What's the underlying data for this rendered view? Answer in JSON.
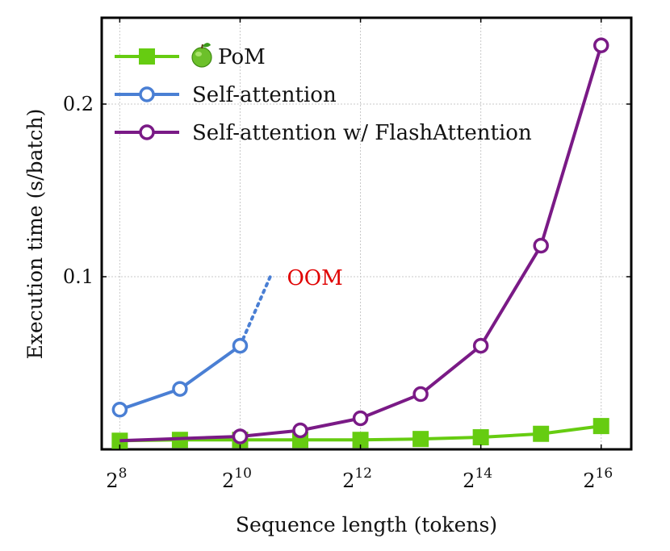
{
  "chart_data": {
    "type": "line",
    "xlabel": "Sequence length (tokens)",
    "ylabel": "Execution time (s/batch)",
    "x_scale": "log2",
    "xlim_exponent": [
      7.7,
      16.5
    ],
    "ylim": [
      0,
      0.25
    ],
    "x_ticks": [
      {
        "base": "2",
        "exp": "8",
        "value": 256
      },
      {
        "base": "2",
        "exp": "10",
        "value": 1024
      },
      {
        "base": "2",
        "exp": "12",
        "value": 4096
      },
      {
        "base": "2",
        "exp": "14",
        "value": 16384
      },
      {
        "base": "2",
        "exp": "16",
        "value": 65536
      }
    ],
    "y_ticks": [
      {
        "label": "0.1",
        "value": 0.1
      },
      {
        "label": "0.2",
        "value": 0.2
      }
    ],
    "grid": true,
    "legend_position": "top-left",
    "series": [
      {
        "name": "PoM",
        "icon": "green-apple-icon",
        "color": "#66cc11",
        "marker": "square-filled",
        "x": [
          256,
          512,
          1024,
          2048,
          4096,
          8192,
          16384,
          32768,
          65536
        ],
        "y": [
          0.005,
          0.0055,
          0.0055,
          0.0055,
          0.0055,
          0.006,
          0.007,
          0.009,
          0.0135
        ]
      },
      {
        "name": "Self-attention",
        "color": "#4a7fd4",
        "marker": "circle-open",
        "x": [
          256,
          512,
          1024
        ],
        "y": [
          0.023,
          0.035,
          0.06
        ],
        "oom_extension": {
          "x": [
            1024,
            1448
          ],
          "y": [
            0.06,
            0.1
          ]
        }
      },
      {
        "name": "Self-attention w/ FlashAttention",
        "color": "#7a1a86",
        "marker": "circle-open",
        "x": [
          1024,
          2048,
          4096,
          8192,
          16384,
          32768,
          65536
        ],
        "y": [
          0.0075,
          0.011,
          0.018,
          0.032,
          0.06,
          0.118,
          0.234
        ],
        "line_start": {
          "x": 256,
          "y": 0.005
        }
      }
    ],
    "annotations": [
      {
        "text": "OOM",
        "color": "#e00000",
        "x": 1600,
        "y": 0.1
      }
    ]
  }
}
